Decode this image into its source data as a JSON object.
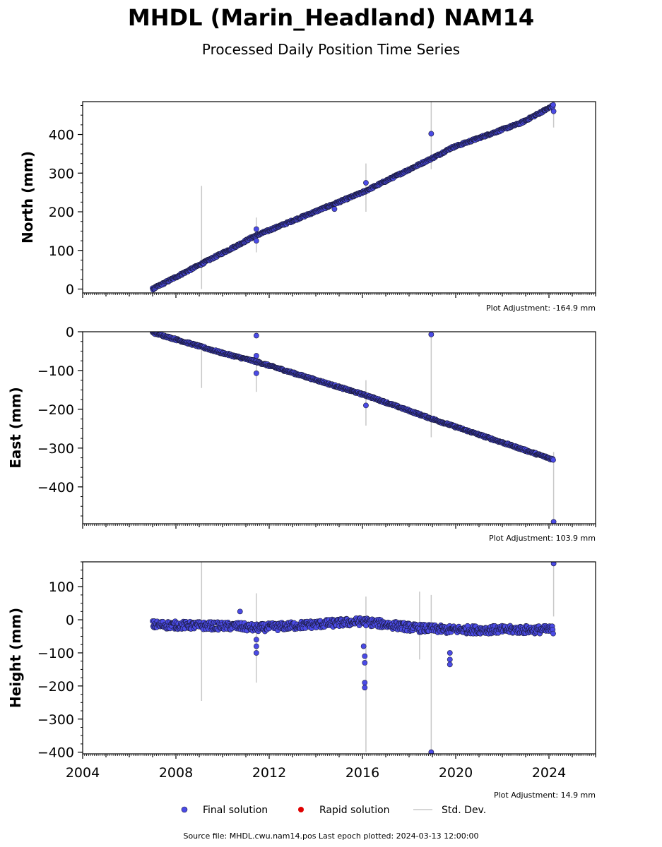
{
  "title": "MHDL (Marin_Headland) NAM14",
  "subtitle": "Processed Daily Position Time Series",
  "footer": "Source file: MHDL.cwu.nam14.pos  Last epoch plotted: 2024-03-13 12:00:00",
  "legend": {
    "final": "Final solution",
    "rapid": "Rapid solution",
    "std": "Std. Dev."
  },
  "colors": {
    "final": "#4b4be6",
    "final_edge": "#1a1a3a",
    "rapid": "#e00000",
    "std": "#c8c8c8"
  },
  "chart_data": [
    {
      "type": "scatter",
      "component": "North",
      "ylabel": "North (mm)",
      "adjustment": "Plot Adjustment: -164.9 mm",
      "xlim": [
        2004,
        2026
      ],
      "ylim": [
        -10,
        485
      ],
      "yticks": [
        0,
        100,
        200,
        300,
        400
      ],
      "trend": [
        [
          2007.0,
          0
        ],
        [
          2010.7,
          115
        ],
        [
          2011.3,
          135
        ],
        [
          2016.0,
          250
        ],
        [
          2019.2,
          345
        ],
        [
          2019.8,
          365
        ],
        [
          2022.8,
          430
        ],
        [
          2024.2,
          475
        ]
      ],
      "outliers": [
        [
          2011.45,
          155
        ],
        [
          2011.45,
          125
        ],
        [
          2014.8,
          207
        ],
        [
          2016.15,
          275
        ],
        [
          2018.95,
          402
        ],
        [
          2024.2,
          460
        ]
      ],
      "std_bars": [
        [
          2009.1,
          0,
          267
        ],
        [
          2011.45,
          95,
          185
        ],
        [
          2016.15,
          200,
          325
        ],
        [
          2018.95,
          310,
          485
        ],
        [
          2024.2,
          418,
          480
        ]
      ]
    },
    {
      "type": "scatter",
      "component": "East",
      "ylabel": "East (mm)",
      "adjustment": "Plot Adjustment: 103.9 mm",
      "xlim": [
        2004,
        2026
      ],
      "ylim": [
        -495,
        0
      ],
      "yticks": [
        0,
        -100,
        -200,
        -300,
        -400
      ],
      "trend": [
        [
          2007.0,
          -2
        ],
        [
          2010.0,
          -55
        ],
        [
          2011.5,
          -78
        ],
        [
          2016.2,
          -165
        ],
        [
          2019.0,
          -225
        ],
        [
          2024.2,
          -330
        ]
      ],
      "outliers": [
        [
          2011.45,
          -10
        ],
        [
          2011.45,
          -62
        ],
        [
          2011.45,
          -107
        ],
        [
          2016.15,
          -190
        ],
        [
          2018.95,
          -7
        ],
        [
          2024.2,
          -490
        ]
      ],
      "std_bars": [
        [
          2009.1,
          -40,
          -145
        ],
        [
          2011.45,
          -55,
          -155
        ],
        [
          2016.15,
          -125,
          -242
        ],
        [
          2018.95,
          0,
          -272
        ],
        [
          2024.2,
          -310,
          -495
        ]
      ]
    },
    {
      "type": "scatter",
      "component": "Height",
      "ylabel": "Height (mm)",
      "adjustment": "Plot Adjustment: 14.9 mm",
      "xlim": [
        2004,
        2026
      ],
      "ylim": [
        -405,
        175
      ],
      "yticks": [
        100,
        0,
        -100,
        -200,
        -300,
        -400
      ],
      "trend": [
        [
          2007.0,
          -15
        ],
        [
          2010.7,
          -20
        ],
        [
          2011.4,
          -25
        ],
        [
          2016.0,
          -5
        ],
        [
          2018.3,
          -25
        ],
        [
          2019.8,
          -30
        ],
        [
          2024.2,
          -30
        ]
      ],
      "outliers": [
        [
          2010.75,
          25
        ],
        [
          2011.45,
          -60
        ],
        [
          2011.45,
          -80
        ],
        [
          2011.45,
          -100
        ],
        [
          2016.1,
          -110
        ],
        [
          2016.1,
          -130
        ],
        [
          2016.1,
          -190
        ],
        [
          2016.1,
          -205
        ],
        [
          2016.05,
          -80
        ],
        [
          2019.75,
          -100
        ],
        [
          2019.75,
          -120
        ],
        [
          2019.75,
          -135
        ],
        [
          2018.95,
          -400
        ],
        [
          2024.2,
          170
        ]
      ],
      "std_bars": [
        [
          2009.1,
          175,
          -245
        ],
        [
          2011.45,
          80,
          -190
        ],
        [
          2016.15,
          70,
          -400
        ],
        [
          2018.45,
          85,
          -120
        ],
        [
          2018.95,
          75,
          -400
        ],
        [
          2024.2,
          170,
          10
        ]
      ]
    }
  ],
  "x_ticks": [
    "2004",
    "2008",
    "2012",
    "2016",
    "2020",
    "2024"
  ]
}
